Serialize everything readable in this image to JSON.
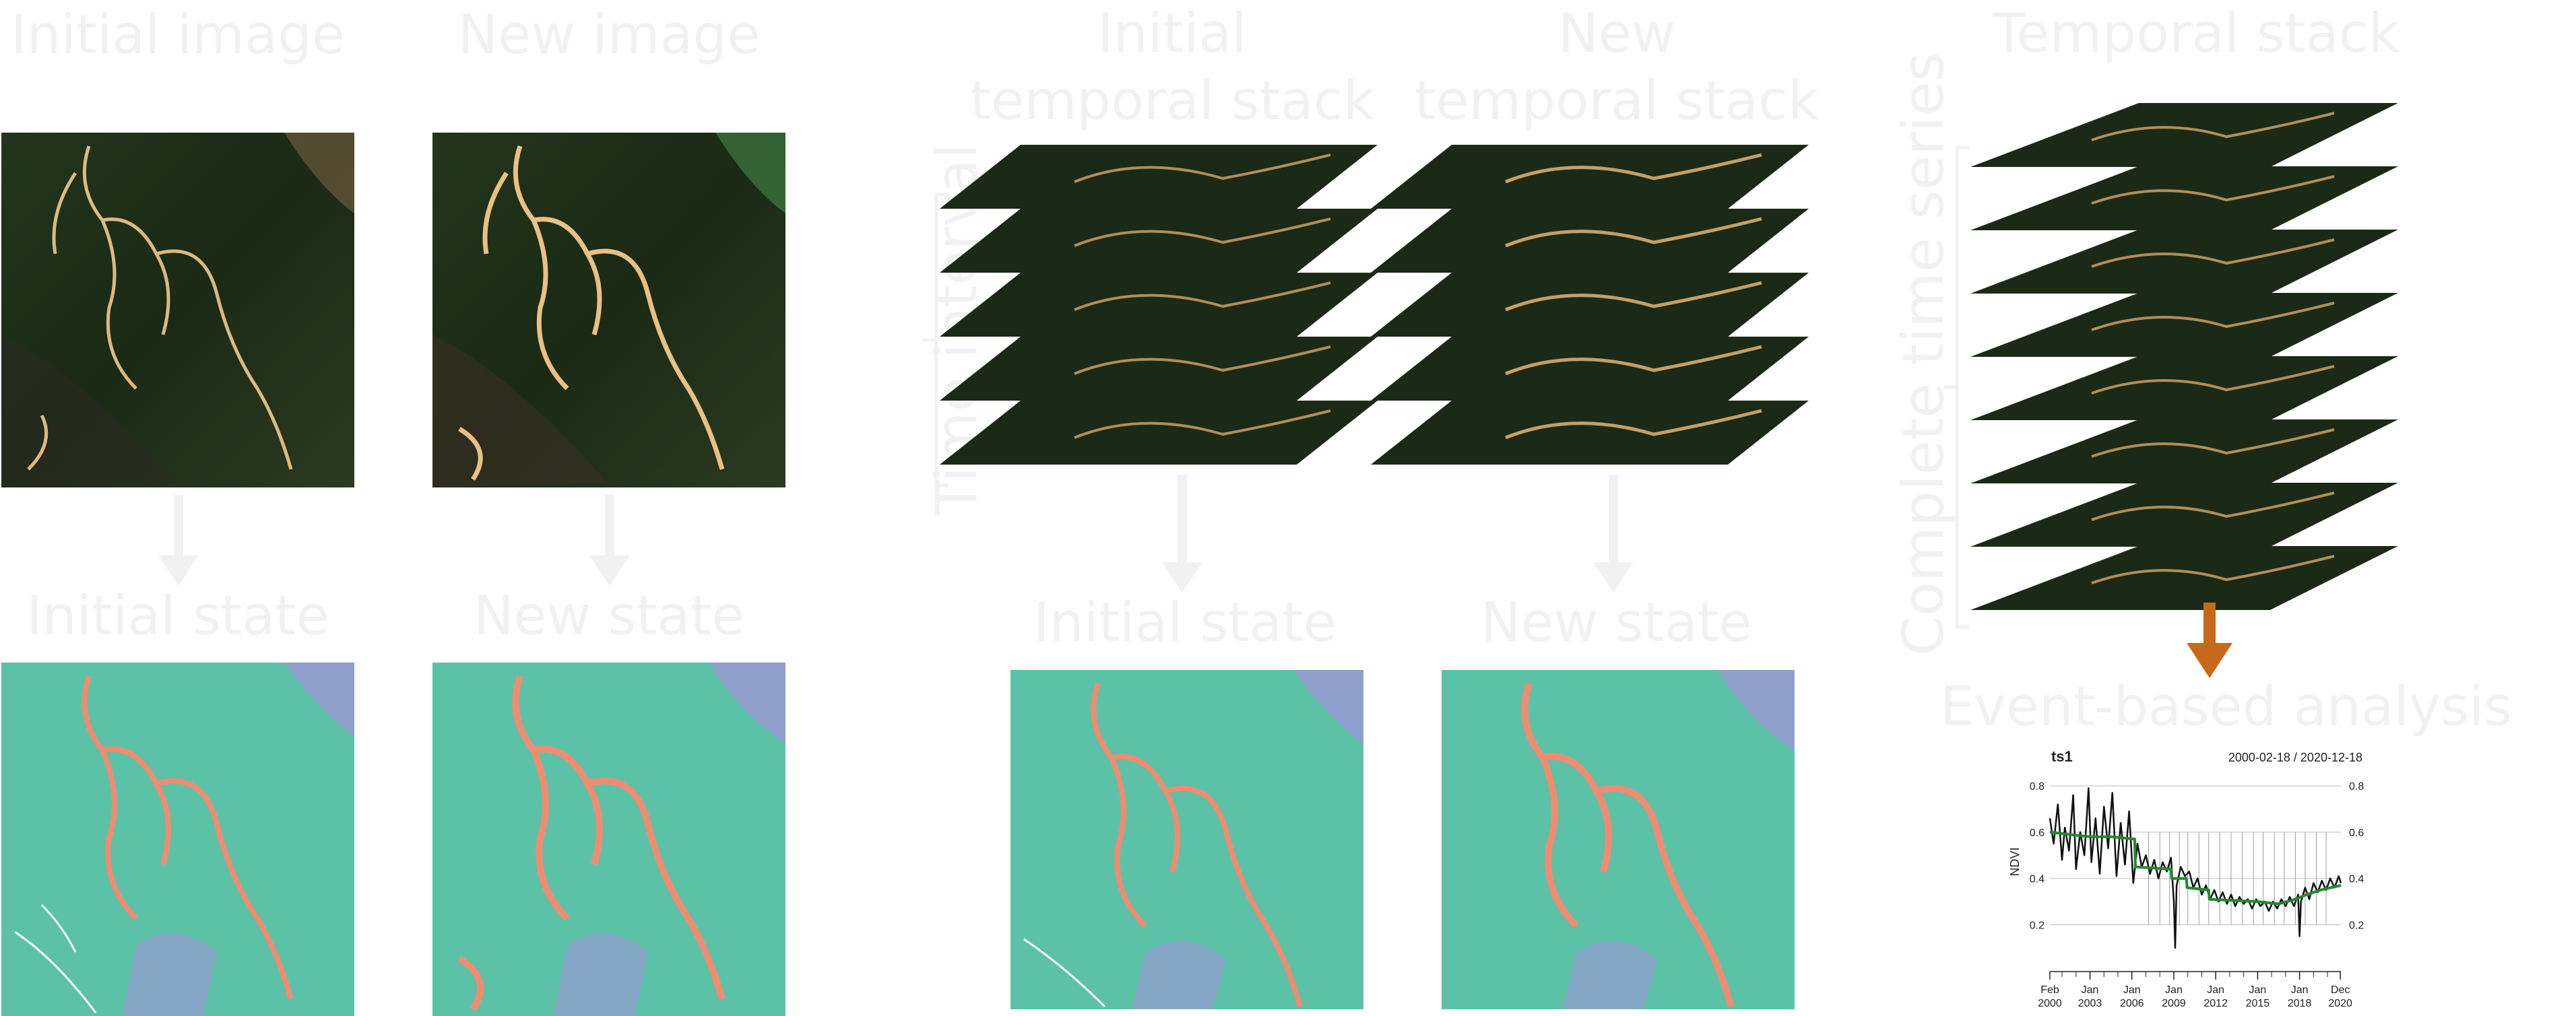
{
  "colors": {
    "class_forest": "#5bc2a7",
    "class_mining": "#f18c72",
    "class_other": "#8fa0cd",
    "arrow_accent": "#c8681b",
    "label_text": "#f1f1f1",
    "satellite_bg": "#1b2a16"
  },
  "labels": {
    "initial_image": "Initial image",
    "new_image": "New image",
    "initial_temporal_stack": [
      "Initial",
      "temporal stack"
    ],
    "new_temporal_stack": [
      "New",
      "temporal stack"
    ],
    "temporal_stack": "Temporal stack",
    "initial_state": "Initial state",
    "new_state": "New state",
    "initial_state_2": "Initial state",
    "new_state_2": "New state",
    "time_interval": "Time interval",
    "complete_time_series": "Complete time series",
    "event_based_analysis": "Event-based analysis"
  },
  "chart_data": {
    "type": "line",
    "title": "ts1",
    "subtitle": "2000-02-18 / 2020-12-18",
    "ylabel": "NDVI",
    "ylim": [
      0.05,
      0.85
    ],
    "yticks": [
      0.2,
      0.4,
      0.6,
      0.8
    ],
    "ytick_labels": [
      "0.2",
      "0.4",
      "0.6",
      "0.8"
    ],
    "xlim": [
      2000.13,
      2020.96
    ],
    "xticks": [
      2000.13,
      2003.0,
      2006.0,
      2009.0,
      2012.0,
      2015.0,
      2018.0,
      2020.92
    ],
    "xtick_labels": [
      [
        "Feb",
        "2000"
      ],
      [
        "Jan",
        "2003"
      ],
      [
        "Jan",
        "2006"
      ],
      [
        "Jan",
        "2009"
      ],
      [
        "Jan",
        "2012"
      ],
      [
        "Jan",
        "2015"
      ],
      [
        "Jan",
        "2018"
      ],
      [
        "Dec",
        "2020"
      ]
    ],
    "breakpoints": [
      2007.2,
      2008.0,
      2008.7,
      2009.4,
      2010.0,
      2010.8,
      2011.5,
      2012.3,
      2013.1,
      2013.9,
      2014.7,
      2015.4,
      2016.2,
      2016.9,
      2017.7,
      2018.4,
      2019.2,
      2019.9
    ],
    "series": [
      {
        "values": [
          [
            2000.13,
            0.66
          ],
          [
            2000.4,
            0.55
          ],
          [
            2000.7,
            0.72
          ],
          [
            2001.0,
            0.48
          ],
          [
            2001.2,
            0.62
          ],
          [
            2001.5,
            0.52
          ],
          [
            2001.8,
            0.76
          ],
          [
            2002.0,
            0.44
          ],
          [
            2002.3,
            0.6
          ],
          [
            2002.6,
            0.5
          ],
          [
            2002.9,
            0.79
          ],
          [
            2003.1,
            0.47
          ],
          [
            2003.4,
            0.66
          ],
          [
            2003.7,
            0.42
          ],
          [
            2004.0,
            0.71
          ],
          [
            2004.3,
            0.53
          ],
          [
            2004.6,
            0.77
          ],
          [
            2004.9,
            0.41
          ],
          [
            2005.2,
            0.64
          ],
          [
            2005.5,
            0.46
          ],
          [
            2005.8,
            0.69
          ],
          [
            2006.1,
            0.38
          ],
          [
            2006.4,
            0.55
          ],
          [
            2006.7,
            0.45
          ],
          [
            2007.0,
            0.5
          ],
          [
            2007.3,
            0.42
          ],
          [
            2007.6,
            0.48
          ],
          [
            2007.9,
            0.4
          ],
          [
            2008.2,
            0.47
          ],
          [
            2008.5,
            0.43
          ],
          [
            2008.8,
            0.49
          ],
          [
            2009.0,
            0.3
          ],
          [
            2009.1,
            0.1
          ],
          [
            2009.2,
            0.37
          ],
          [
            2009.5,
            0.45
          ],
          [
            2009.8,
            0.41
          ],
          [
            2010.1,
            0.43
          ],
          [
            2010.4,
            0.36
          ],
          [
            2010.7,
            0.4
          ],
          [
            2011.0,
            0.33
          ],
          [
            2011.3,
            0.37
          ],
          [
            2011.6,
            0.31
          ],
          [
            2011.9,
            0.35
          ],
          [
            2012.2,
            0.3
          ],
          [
            2012.5,
            0.34
          ],
          [
            2012.8,
            0.29
          ],
          [
            2013.1,
            0.33
          ],
          [
            2013.4,
            0.28
          ],
          [
            2013.7,
            0.32
          ],
          [
            2014.0,
            0.29
          ],
          [
            2014.3,
            0.31
          ],
          [
            2014.6,
            0.27
          ],
          [
            2014.9,
            0.31
          ],
          [
            2015.2,
            0.28
          ],
          [
            2015.5,
            0.3
          ],
          [
            2015.8,
            0.26
          ],
          [
            2016.1,
            0.3
          ],
          [
            2016.4,
            0.27
          ],
          [
            2016.7,
            0.31
          ],
          [
            2017.0,
            0.28
          ],
          [
            2017.3,
            0.32
          ],
          [
            2017.6,
            0.28
          ],
          [
            2017.9,
            0.33
          ],
          [
            2018.0,
            0.15
          ],
          [
            2018.1,
            0.3
          ],
          [
            2018.4,
            0.36
          ],
          [
            2018.7,
            0.31
          ],
          [
            2019.0,
            0.38
          ],
          [
            2019.3,
            0.34
          ],
          [
            2019.6,
            0.39
          ],
          [
            2019.9,
            0.35
          ],
          [
            2020.2,
            0.4
          ],
          [
            2020.5,
            0.36
          ],
          [
            2020.8,
            0.41
          ],
          [
            2020.96,
            0.38
          ]
        ]
      },
      {
        "values": [
          [
            2000.13,
            0.6
          ],
          [
            2001.5,
            0.59
          ],
          [
            2003.0,
            0.58
          ],
          [
            2004.5,
            0.58
          ],
          [
            2006.2,
            0.57
          ],
          [
            2006.25,
            0.45
          ],
          [
            2008.8,
            0.44
          ],
          [
            2008.85,
            0.4
          ],
          [
            2009.9,
            0.4
          ],
          [
            2009.95,
            0.36
          ],
          [
            2011.5,
            0.35
          ],
          [
            2011.55,
            0.31
          ],
          [
            2015.0,
            0.3
          ],
          [
            2016.5,
            0.29
          ],
          [
            2017.7,
            0.31
          ],
          [
            2018.5,
            0.33
          ],
          [
            2019.5,
            0.35
          ],
          [
            2020.96,
            0.37
          ]
        ]
      }
    ]
  }
}
